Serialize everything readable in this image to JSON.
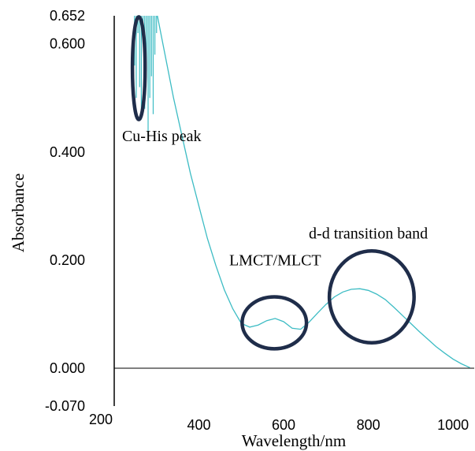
{
  "chart_data": {
    "type": "line",
    "title": "",
    "xlabel": "Wavelength/nm",
    "ylabel": "Absorbance",
    "xlim": [
      200,
      1050
    ],
    "ylim": [
      -0.07,
      0.652
    ],
    "x_ticks": [
      "200",
      "400",
      "600",
      "800",
      "1000"
    ],
    "x_tick_values": [
      200,
      400,
      600,
      800,
      1000
    ],
    "y_ticks": [
      "0.652",
      "0.600",
      "0.400",
      "0.200",
      "0.000",
      "-0.070"
    ],
    "y_tick_values": [
      0.652,
      0.6,
      0.4,
      0.2,
      0.0,
      -0.07
    ],
    "grid": false,
    "line_color": "#3dbcc4",
    "highlight_color": "#1f2d4a",
    "series": [
      {
        "name": "",
        "x": [
          302,
          320,
          340,
          360,
          380,
          400,
          420,
          440,
          460,
          480,
          500,
          520,
          540,
          560,
          580,
          600,
          620,
          640,
          660,
          680,
          700,
          720,
          740,
          760,
          780,
          800,
          820,
          840,
          860,
          880,
          900,
          920,
          940,
          960,
          980,
          1000,
          1020,
          1040
        ],
        "y": [
          0.652,
          0.58,
          0.5,
          0.43,
          0.36,
          0.3,
          0.24,
          0.19,
          0.145,
          0.11,
          0.083,
          0.076,
          0.08,
          0.088,
          0.092,
          0.086,
          0.074,
          0.072,
          0.085,
          0.102,
          0.118,
          0.132,
          0.141,
          0.146,
          0.147,
          0.144,
          0.137,
          0.127,
          0.113,
          0.098,
          0.083,
          0.068,
          0.054,
          0.04,
          0.028,
          0.017,
          0.008,
          0.001
        ]
      }
    ],
    "cu_his_spikes": {
      "x": [
        248,
        252,
        256,
        260,
        264,
        268,
        272,
        276,
        280,
        284,
        288,
        292,
        296,
        300
      ],
      "y_min": [
        0.56,
        0.5,
        0.62,
        0.52,
        0.46,
        0.6,
        0.48,
        0.55,
        0.43,
        0.5,
        0.54,
        0.47,
        0.58,
        0.62
      ]
    },
    "annotations": [
      {
        "text": "Cu-His peak",
        "x": 312,
        "y": 0.42
      },
      {
        "text": "LMCT/MLCT",
        "x": 580,
        "y": 0.19
      },
      {
        "text": "d-d transition band",
        "x": 800,
        "y": 0.24
      }
    ],
    "highlights": [
      {
        "cx": 258,
        "cy": 0.555,
        "rx": 15,
        "ry": 0.095
      },
      {
        "cx": 578,
        "cy": 0.084,
        "rx": 76,
        "ry": 0.048
      },
      {
        "cx": 808,
        "cy": 0.132,
        "rx": 100,
        "ry": 0.085
      }
    ]
  }
}
